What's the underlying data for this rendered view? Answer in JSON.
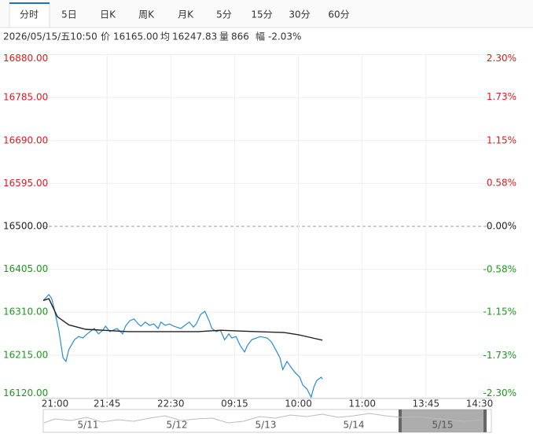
{
  "tabs": [
    "分时",
    "5日",
    "日K",
    "周K",
    "月K",
    "5分",
    "15分",
    "30分",
    "60分"
  ],
  "info": {
    "datetime": "2026/05/15/五10:50",
    "price_label": "价",
    "price": "16165.00",
    "avg_label": "均",
    "avg": "16247.83",
    "vol_label": "量",
    "vol": "866",
    "range_label": "幅",
    "range": "-2.03%"
  },
  "chart_data": {
    "type": "line",
    "xlim": [
      0,
      315
    ],
    "xticks": [
      {
        "value": 0,
        "label": "21:00"
      },
      {
        "value": 45,
        "label": "21:45"
      },
      {
        "value": 90,
        "label": "22:30"
      },
      {
        "value": 135,
        "label": "09:15"
      },
      {
        "value": 180,
        "label": "10:00"
      },
      {
        "value": 225,
        "label": "11:00"
      },
      {
        "value": 270,
        "label": "13:45"
      },
      {
        "value": 315,
        "label": "14:30"
      }
    ],
    "ylim": [
      16120,
      16880
    ],
    "yticks": [
      {
        "value": 16880,
        "label": "16880.00"
      },
      {
        "value": 16785,
        "label": "16785.00"
      },
      {
        "value": 16690,
        "label": "16690.00"
      },
      {
        "value": 16595,
        "label": "16595.00"
      },
      {
        "value": 16500,
        "label": "16500.00"
      },
      {
        "value": 16405,
        "label": "16405.00"
      },
      {
        "value": 16310,
        "label": "16310.00"
      },
      {
        "value": 16215,
        "label": "16215.00"
      },
      {
        "value": 16120,
        "label": "16120.00"
      }
    ],
    "y2lim": [
      -2.3,
      2.3
    ],
    "y2ticks": [
      {
        "value": 2.3,
        "label": "2.30%"
      },
      {
        "value": 1.73,
        "label": "1.73%"
      },
      {
        "value": 1.15,
        "label": "1.15%"
      },
      {
        "value": 0.58,
        "label": "0.58%"
      },
      {
        "value": 0,
        "label": "0.00%"
      },
      {
        "value": -0.58,
        "label": "-0.58%"
      },
      {
        "value": -1.15,
        "label": "-1.15%"
      },
      {
        "value": -1.73,
        "label": "-1.73%"
      },
      {
        "value": -2.3,
        "label": "-2.30%"
      }
    ],
    "grid": true,
    "series": [
      {
        "color": "#2a8bd0",
        "x": [
          0,
          4,
          6,
          8,
          11,
          14,
          16,
          18,
          22,
          25,
          28,
          31,
          36,
          39,
          42,
          44,
          47,
          52,
          56,
          58,
          61,
          64,
          67,
          69,
          72,
          75,
          78,
          81,
          83,
          86,
          89,
          92,
          97,
          103,
          106,
          108,
          111,
          114,
          117,
          119,
          122,
          125,
          128,
          131,
          133,
          136,
          139,
          142,
          144,
          147,
          153,
          158,
          161,
          164,
          167,
          169,
          172,
          175,
          178,
          181,
          183,
          186,
          189,
          191,
          193,
          196,
          197
        ],
        "values": [
          16336,
          16349,
          16340,
          16314,
          16270,
          16209,
          16201,
          16227,
          16249,
          16256,
          16253,
          16262,
          16274,
          16262,
          16270,
          16279,
          16267,
          16274,
          16262,
          16279,
          16291,
          16295,
          16284,
          16279,
          16288,
          16281,
          16284,
          16274,
          16288,
          16281,
          16284,
          16279,
          16274,
          16288,
          16277,
          16284,
          16305,
          16312,
          16291,
          16274,
          16267,
          16270,
          16249,
          16262,
          16253,
          16256,
          16236,
          16222,
          16236,
          16249,
          16256,
          16253,
          16244,
          16227,
          16209,
          16183,
          16201,
          16187,
          16175,
          16166,
          16149,
          16140,
          16122,
          16145,
          16159,
          16166,
          16162
        ]
      },
      {
        "color": "#222222",
        "x": [
          0,
          4,
          10,
          18,
          30,
          60,
          110,
          125,
          150,
          170,
          180,
          190,
          197
        ],
        "values": [
          16336,
          16340,
          16300,
          16282,
          16272,
          16267,
          16267,
          16270,
          16267,
          16265,
          16260,
          16253,
          16248
        ]
      }
    ]
  },
  "navigator": {
    "days": [
      "5/11",
      "5/12",
      "5/13",
      "5/14",
      "5/15"
    ]
  }
}
